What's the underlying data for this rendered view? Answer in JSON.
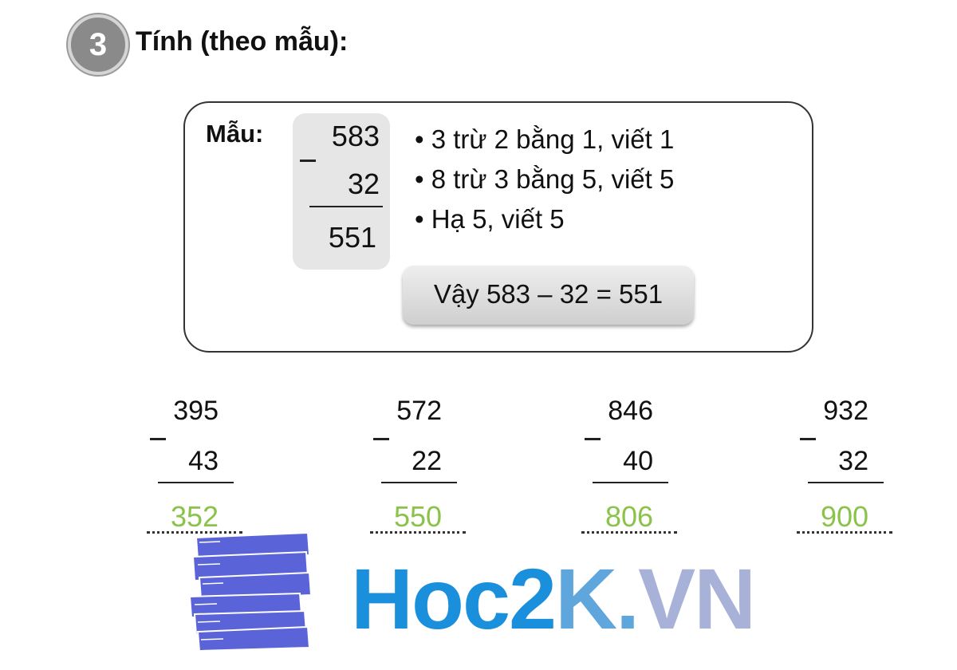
{
  "exercise": {
    "number": "3",
    "title": "Tính (theo mẫu):"
  },
  "example": {
    "label": "Mẫu:",
    "minuend": "583",
    "subtrahend": "32",
    "result": "551",
    "steps": [
      "• 3 trừ 2 bằng 1, viết 1",
      "• 8 trừ 3 bằng 5, viết 5",
      "• Hạ 5, viết 5"
    ],
    "conclusion": "Vậy 583 – 32 = 551"
  },
  "problems": [
    {
      "minuend": "395",
      "subtrahend": "43",
      "answer": "352"
    },
    {
      "minuend": "572",
      "subtrahend": "22",
      "answer": "550"
    },
    {
      "minuend": "846",
      "subtrahend": "40",
      "answer": "806"
    },
    {
      "minuend": "932",
      "subtrahend": "32",
      "answer": "900"
    }
  ],
  "colors": {
    "answer": "#8bc34a",
    "logo_blue": "#1a8fdc",
    "books": "#5a64d8"
  },
  "logo": {
    "text": "Hoc2K.VN"
  }
}
